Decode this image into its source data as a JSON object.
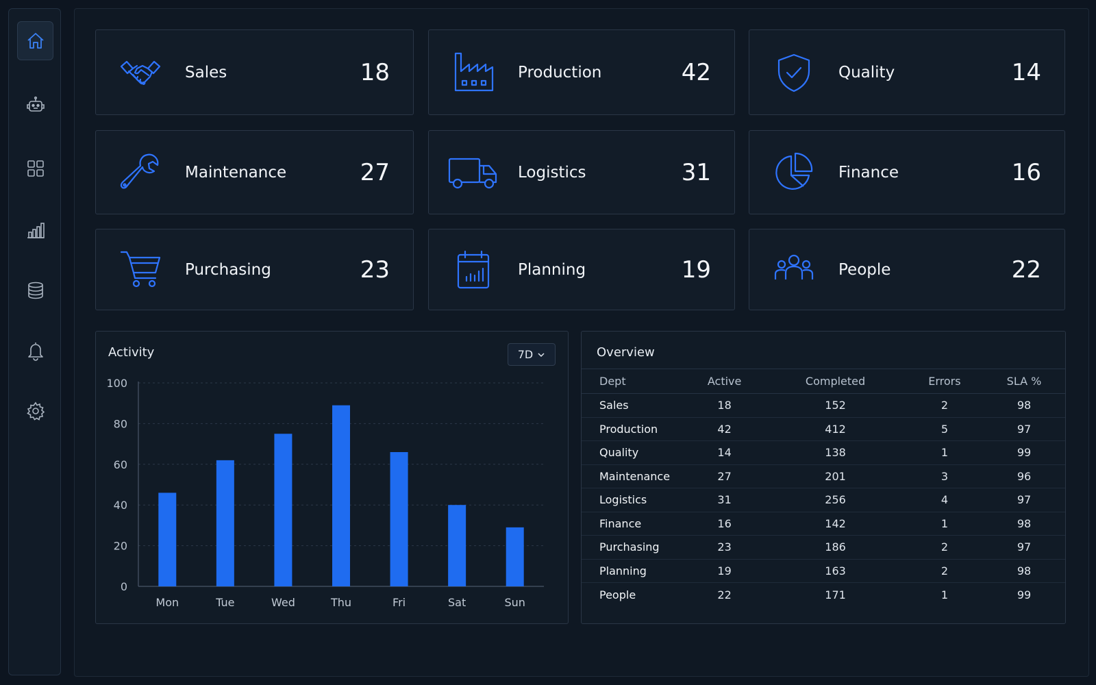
{
  "sidebar": {
    "items": [
      {
        "icon": "home-icon",
        "active": true
      },
      {
        "icon": "robot-icon",
        "active": false
      },
      {
        "icon": "grid-icon",
        "active": false
      },
      {
        "icon": "bar-chart-icon",
        "active": false
      },
      {
        "icon": "database-icon",
        "active": false
      },
      {
        "icon": "bell-icon",
        "active": false
      },
      {
        "icon": "gear-icon",
        "active": false
      }
    ]
  },
  "cards": [
    {
      "label": "Sales",
      "value": "18",
      "icon": "handshake-icon"
    },
    {
      "label": "Production",
      "value": "42",
      "icon": "factory-icon"
    },
    {
      "label": "Quality",
      "value": "14",
      "icon": "shield-check-icon"
    },
    {
      "label": "Maintenance",
      "value": "27",
      "icon": "wrench-icon"
    },
    {
      "label": "Logistics",
      "value": "31",
      "icon": "truck-icon"
    },
    {
      "label": "Finance",
      "value": "16",
      "icon": "pie-chart-icon"
    },
    {
      "label": "Purchasing",
      "value": "23",
      "icon": "cart-icon"
    },
    {
      "label": "Planning",
      "value": "19",
      "icon": "calendar-chart-icon"
    },
    {
      "label": "People",
      "value": "22",
      "icon": "people-icon"
    }
  ],
  "activity": {
    "title": "Activity",
    "range_label": "7D"
  },
  "chart_data": {
    "type": "bar",
    "categories": [
      "Mon",
      "Tue",
      "Wed",
      "Thu",
      "Fri",
      "Sat",
      "Sun"
    ],
    "values": [
      46,
      62,
      75,
      89,
      66,
      40,
      29
    ],
    "ylim": [
      0,
      100
    ],
    "yticks": [
      "100",
      "80",
      "60",
      "40",
      "20",
      "0"
    ],
    "grid": true,
    "bar_color": "#1f6cf0"
  },
  "overview": {
    "title": "Overview",
    "columns": [
      "Dept",
      "Active",
      "Completed",
      "Errors",
      "SLA %"
    ],
    "rows": [
      [
        "Sales",
        "18",
        "152",
        "2",
        "98"
      ],
      [
        "Production",
        "42",
        "412",
        "5",
        "97"
      ],
      [
        "Quality",
        "14",
        "138",
        "1",
        "99"
      ],
      [
        "Maintenance",
        "27",
        "201",
        "3",
        "96"
      ],
      [
        "Logistics",
        "31",
        "256",
        "4",
        "97"
      ],
      [
        "Finance",
        "16",
        "142",
        "1",
        "98"
      ],
      [
        "Purchasing",
        "23",
        "186",
        "2",
        "97"
      ],
      [
        "Planning",
        "19",
        "163",
        "2",
        "98"
      ],
      [
        "People",
        "22",
        "171",
        "1",
        "99"
      ]
    ]
  },
  "colors": {
    "accent": "#2f74ff",
    "background": "#0d1520",
    "panel": "#121c28"
  }
}
